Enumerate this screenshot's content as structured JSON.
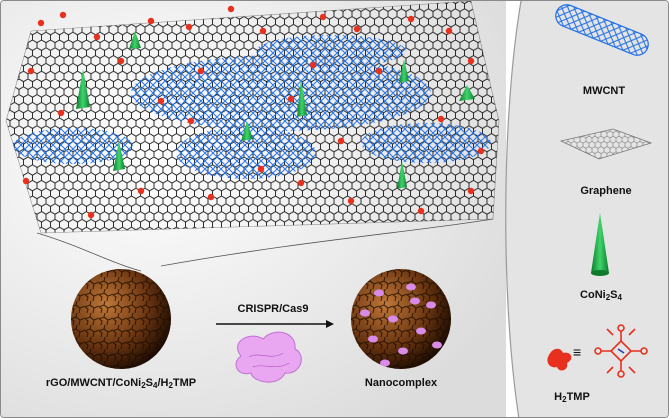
{
  "colors": {
    "graphene": "#1a1a1a",
    "mwcnt": "#1f6fe6",
    "h2tmp": "#e8301f",
    "coni2s4": "#1bb24a",
    "sphere": "#7a3f14",
    "cas9": "#d98be8",
    "background": "#e9e9e9"
  },
  "main_panel": {
    "start_label": {
      "text": "rGO/MWCNT/CoNi",
      "sub1": "2",
      "mid1": "S",
      "sub2": "4",
      "mid2": "/H",
      "sub3": "2",
      "tail": "TMP"
    },
    "arrow_label": "CRISPR/Cas9",
    "end_label": "Nanocomplex"
  },
  "legend": {
    "mwcnt": "MWCNT",
    "graphene": "Graphene",
    "coni2s4": {
      "text": "CoNi",
      "sub1": "2",
      "mid": "S",
      "sub2": "4"
    },
    "h2tmp": {
      "text": "H",
      "sub1": "2",
      "tail": "TMP"
    },
    "equiv_symbol": "≡"
  }
}
